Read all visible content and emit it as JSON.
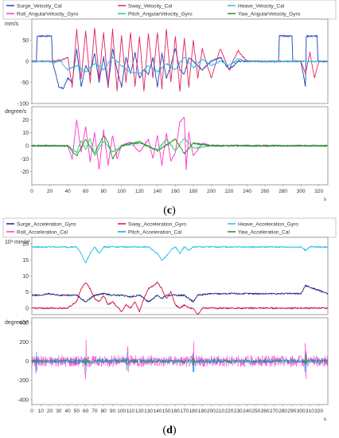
{
  "panels": [
    {
      "caption": "(c)",
      "caption_bold": "c",
      "legend": [
        {
          "name": "Surge_Velocity_Cal",
          "color": "#1f3fbf"
        },
        {
          "name": "Sway_Velocity_Cal",
          "color": "#e0245e"
        },
        {
          "name": "Heave_Velocity_Cal",
          "color": "#22c0e8"
        },
        {
          "name": "Roll_AngularVelocity_Gyro",
          "color": "#ff33cc"
        },
        {
          "name": "Pitch_AngularVelocity_Gyro",
          "color": "#33cc77"
        },
        {
          "name": "Yaw_AngularVelocity_Gyro",
          "color": "#2a8a2a"
        }
      ]
    },
    {
      "caption": "(d)",
      "caption_bold": "d",
      "legend": [
        {
          "name": "Surge_Acceleration_Gyro",
          "color": "#1a237e"
        },
        {
          "name": "Sway_Acceleration_Gyro",
          "color": "#d0103a"
        },
        {
          "name": "Heave_Acceleration_Gyro",
          "color": "#22c0e8"
        },
        {
          "name": "Roll_Acceleration_Cal",
          "color": "#ff33cc"
        },
        {
          "name": "Pitch_Acceleration_Cal",
          "color": "#1e90ff"
        },
        {
          "name": "Yaw_Acceleration_Cal",
          "color": "#2a8a2a"
        }
      ]
    }
  ],
  "chart_data": [
    {
      "type": "line",
      "ylabel": "mm/s",
      "xlim": [
        0,
        330
      ],
      "ylim": [
        -100,
        100
      ],
      "yticks": [
        -100,
        -50,
        0,
        50
      ],
      "series": [
        {
          "name": "Surge_Velocity_Cal",
          "color": "#1f3fbf",
          "x": [
            0,
            5,
            6,
            22,
            23,
            30,
            35,
            40,
            45,
            50,
            55,
            60,
            65,
            70,
            75,
            80,
            85,
            90,
            95,
            100,
            105,
            110,
            115,
            120,
            125,
            130,
            135,
            140,
            145,
            150,
            155,
            160,
            165,
            170,
            175,
            180,
            190,
            200,
            210,
            220,
            230,
            240,
            250,
            260,
            270,
            275,
            276,
            290,
            291,
            300,
            305,
            306,
            318,
            319,
            330
          ],
          "y": [
            0,
            0,
            60,
            60,
            0,
            -60,
            -65,
            -40,
            -50,
            30,
            -60,
            -10,
            -30,
            20,
            -50,
            10,
            -60,
            30,
            -20,
            -60,
            10,
            -30,
            20,
            -40,
            -20,
            -30,
            10,
            -60,
            20,
            -40,
            -10,
            30,
            -20,
            -30,
            10,
            0,
            -20,
            0,
            10,
            -20,
            0,
            0,
            0,
            0,
            0,
            0,
            60,
            60,
            0,
            0,
            -60,
            60,
            60,
            0,
            0
          ]
        },
        {
          "name": "Sway_Velocity_Cal",
          "color": "#e0245e",
          "x": [
            0,
            20,
            30,
            40,
            45,
            50,
            55,
            60,
            65,
            70,
            75,
            80,
            85,
            90,
            95,
            100,
            105,
            110,
            115,
            120,
            125,
            130,
            135,
            140,
            145,
            150,
            155,
            160,
            165,
            170,
            175,
            180,
            185,
            190,
            200,
            210,
            220,
            230,
            240,
            250,
            260,
            300,
            305,
            310,
            315,
            320,
            330
          ],
          "y": [
            0,
            0,
            0,
            10,
            -60,
            75,
            -40,
            70,
            -50,
            80,
            -40,
            70,
            -60,
            75,
            -70,
            60,
            -50,
            70,
            -60,
            60,
            -70,
            65,
            -40,
            70,
            -65,
            75,
            -50,
            60,
            -70,
            55,
            -60,
            50,
            -40,
            30,
            -40,
            30,
            -20,
            25,
            0,
            0,
            0,
            0,
            -30,
            20,
            -40,
            0,
            0
          ]
        },
        {
          "name": "Heave_Velocity_Cal",
          "color": "#22c0e8",
          "x": [
            0,
            10,
            20,
            25,
            30,
            40,
            50,
            60,
            70,
            80,
            90,
            100,
            110,
            120,
            130,
            140,
            150,
            160,
            170,
            180,
            190,
            200,
            210,
            220,
            230,
            240,
            250,
            300,
            330
          ],
          "y": [
            0,
            0,
            0,
            -5,
            5,
            -20,
            -10,
            -25,
            -5,
            -20,
            10,
            -10,
            -25,
            -30,
            -10,
            -25,
            -5,
            -20,
            10,
            -15,
            5,
            -10,
            0,
            -10,
            5,
            0,
            0,
            0,
            0
          ]
        }
      ]
    },
    {
      "type": "line",
      "ylabel": "degree/s",
      "xlabel": "s",
      "xlim": [
        0,
        330
      ],
      "ylim": [
        -30,
        30
      ],
      "yticks": [
        -20,
        -10,
        0,
        10,
        20
      ],
      "xticks": [
        0,
        20,
        40,
        60,
        80,
        100,
        120,
        140,
        160,
        180,
        200,
        220,
        240,
        260,
        280,
        300,
        320
      ],
      "series": [
        {
          "name": "Roll_AngularVelocity_Gyro",
          "color": "#ff33cc",
          "x": [
            0,
            40,
            45,
            50,
            55,
            60,
            65,
            70,
            75,
            80,
            85,
            90,
            95,
            100,
            110,
            120,
            130,
            135,
            140,
            145,
            150,
            155,
            160,
            165,
            170,
            172,
            175,
            180,
            190,
            200,
            210,
            300,
            330
          ],
          "y": [
            0,
            0,
            -10,
            20,
            -5,
            15,
            -12,
            10,
            -18,
            12,
            -15,
            8,
            -10,
            0,
            3,
            -5,
            5,
            -10,
            8,
            -15,
            10,
            -12,
            -5,
            18,
            22,
            -18,
            10,
            -8,
            2,
            0,
            0,
            0,
            0
          ]
        },
        {
          "name": "Pitch_AngularVelocity_Gyro",
          "color": "#33cc77",
          "x": [
            0,
            40,
            50,
            55,
            60,
            65,
            70,
            80,
            90,
            100,
            120,
            140,
            150,
            160,
            170,
            180,
            200,
            300,
            330
          ],
          "y": [
            0,
            0,
            -5,
            4,
            -3,
            6,
            -8,
            4,
            -5,
            0,
            2,
            -3,
            5,
            -4,
            6,
            -2,
            0,
            0,
            0
          ]
        },
        {
          "name": "Yaw_AngularVelocity_Gyro",
          "color": "#2a8a2a",
          "x": [
            0,
            40,
            50,
            60,
            70,
            80,
            85,
            90,
            100,
            120,
            140,
            160,
            170,
            180,
            200,
            300,
            330
          ],
          "y": [
            0,
            0,
            -8,
            5,
            -6,
            8,
            3,
            -10,
            0,
            3,
            -4,
            5,
            -6,
            2,
            0,
            0,
            0
          ]
        }
      ]
    },
    {
      "type": "line",
      "ylabel": "10³ mm/s²",
      "xlim": [
        0,
        330
      ],
      "ylim": [
        -2,
        22
      ],
      "yticks": [
        0,
        5,
        10,
        15,
        20
      ],
      "series": [
        {
          "name": "Heave_Acceleration_Gyro",
          "color": "#22c0e8",
          "x": [
            0,
            50,
            55,
            60,
            65,
            70,
            75,
            80,
            130,
            140,
            145,
            150,
            155,
            160,
            165,
            170,
            175,
            180,
            200,
            300,
            305,
            310,
            330
          ],
          "y": [
            19,
            19,
            17,
            14,
            17,
            19,
            17,
            19,
            19,
            17,
            15,
            16,
            18,
            19,
            17,
            19,
            18,
            19,
            19,
            19,
            18,
            19,
            19
          ]
        },
        {
          "name": "Surge_Acceleration_Gyro",
          "color": "#1a237e",
          "x": [
            0,
            10,
            20,
            30,
            40,
            50,
            55,
            60,
            65,
            70,
            80,
            90,
            100,
            110,
            120,
            125,
            130,
            135,
            140,
            145,
            150,
            160,
            170,
            175,
            180,
            185,
            200,
            250,
            300,
            305,
            330
          ],
          "y": [
            4,
            4,
            4.5,
            4,
            4,
            4,
            3,
            2,
            3,
            4,
            4.5,
            4,
            4,
            3.5,
            4,
            3,
            2,
            3,
            4,
            3,
            4,
            4,
            4,
            3,
            2,
            4,
            4.5,
            4.5,
            4.5,
            7,
            4.5
          ]
        },
        {
          "name": "Sway_Acceleration_Gyro",
          "color": "#d0103a",
          "x": [
            0,
            20,
            30,
            40,
            50,
            55,
            60,
            65,
            70,
            75,
            80,
            85,
            90,
            100,
            105,
            110,
            115,
            120,
            125,
            130,
            135,
            140,
            145,
            150,
            155,
            160,
            165,
            170,
            175,
            180,
            185,
            190,
            200,
            300,
            330
          ],
          "y": [
            0,
            0,
            0,
            0,
            2,
            6,
            8,
            6,
            3,
            2,
            4,
            1,
            2,
            -1,
            1,
            0,
            2,
            -1,
            3,
            6,
            7,
            8,
            6,
            3,
            5,
            1,
            0,
            1,
            0,
            0,
            -2,
            0,
            0,
            0,
            0
          ]
        }
      ]
    },
    {
      "type": "line",
      "ylabel": "degree/s²",
      "xlabel": "s",
      "xlim": [
        0,
        330
      ],
      "ylim": [
        -450,
        450
      ],
      "yticks": [
        -400,
        -200,
        0,
        200,
        400
      ],
      "xticks": [
        0,
        10,
        20,
        30,
        40,
        50,
        60,
        70,
        80,
        90,
        100,
        110,
        120,
        130,
        140,
        150,
        160,
        170,
        180,
        190,
        200,
        210,
        220,
        230,
        240,
        250,
        260,
        270,
        280,
        290,
        300,
        310,
        320
      ],
      "series": [
        {
          "name": "Roll_Acceleration_Cal",
          "color": "#ff33cc",
          "noise_amplitude": 60
        },
        {
          "name": "Pitch_Acceleration_Cal",
          "color": "#1e90ff",
          "noise_amplitude": 30
        },
        {
          "name": "Yaw_Acceleration_Cal",
          "color": "#2a8a2a",
          "noise_amplitude": 15
        }
      ]
    }
  ]
}
